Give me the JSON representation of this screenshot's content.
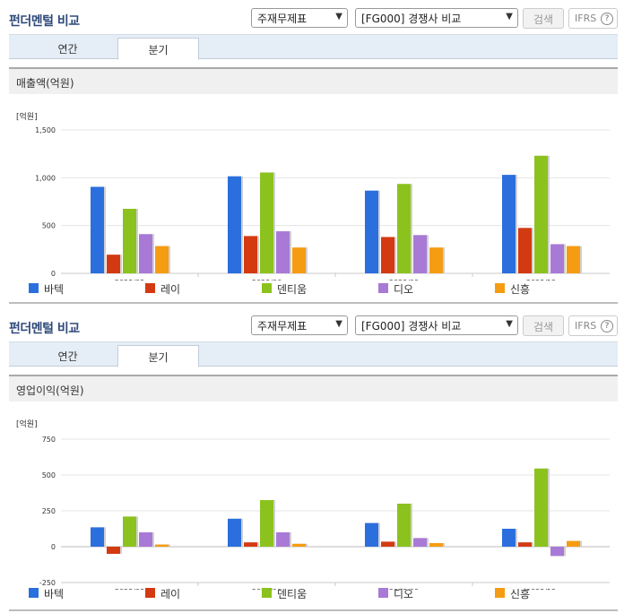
{
  "panels": [
    {
      "title": "펀더멘털 비교",
      "select_metric": "주재무제표",
      "select_peer": "[FG000] 경쟁사 비교",
      "search_label": "검색",
      "ifrs_label": "IFRS",
      "help_glyph": "?",
      "tabs": [
        {
          "label": "연간"
        },
        {
          "label": "분기"
        }
      ],
      "active_tab": "분기",
      "metric_title": "매출액(억원)",
      "unit_label": "[억원]"
    },
    {
      "title": "펀더멘털 비교",
      "select_metric": "주재무제표",
      "select_peer": "[FG000] 경쟁사 비교",
      "search_label": "검색",
      "ifrs_label": "IFRS",
      "help_glyph": "?",
      "tabs": [
        {
          "label": "연간"
        },
        {
          "label": "분기"
        }
      ],
      "active_tab": "분기",
      "metric_title": "영업이익(억원)",
      "unit_label": "[억원]"
    }
  ],
  "icons": {
    "dropdown": "chevron-down-icon",
    "help": "question-circle-icon"
  },
  "chart_data": [
    {
      "type": "bar",
      "title": "매출액(억원)",
      "categories": [
        "2023/03",
        "2023/06",
        "2023/09",
        "2023/12"
      ],
      "ylim": [
        0,
        1500
      ],
      "yticks": [
        0,
        500,
        1000,
        1500
      ],
      "ytick_labels": [
        "0",
        "500",
        "1,000",
        "1,500"
      ],
      "grid": true,
      "legend_position": "bottom",
      "series": [
        {
          "name": "바텍",
          "color": "#2b6fde",
          "values": [
            905,
            1015,
            865,
            1030
          ]
        },
        {
          "name": "레이",
          "color": "#d43a12",
          "values": [
            195,
            390,
            380,
            475
          ]
        },
        {
          "name": "덴티움",
          "color": "#8cc21e",
          "values": [
            675,
            1055,
            935,
            1230
          ]
        },
        {
          "name": "디오",
          "color": "#a87ad6",
          "values": [
            410,
            440,
            400,
            305
          ]
        },
        {
          "name": "신흥",
          "color": "#f59c12",
          "values": [
            285,
            270,
            270,
            285
          ]
        }
      ]
    },
    {
      "type": "bar",
      "title": "영업이익(억원)",
      "categories": [
        "2023/03",
        "2023/06",
        "2023/09",
        "2023/12"
      ],
      "ylim": [
        -250,
        750
      ],
      "yticks": [
        -250,
        0,
        250,
        500,
        750
      ],
      "ytick_labels": [
        "-250",
        "0",
        "250",
        "500",
        "750"
      ],
      "grid": true,
      "legend_position": "bottom",
      "series": [
        {
          "name": "바텍",
          "color": "#2b6fde",
          "values": [
            135,
            195,
            165,
            125
          ]
        },
        {
          "name": "레이",
          "color": "#d43a12",
          "values": [
            -50,
            30,
            35,
            30
          ]
        },
        {
          "name": "덴티움",
          "color": "#8cc21e",
          "values": [
            210,
            325,
            300,
            545
          ]
        },
        {
          "name": "디오",
          "color": "#a87ad6",
          "values": [
            100,
            100,
            60,
            -65
          ]
        },
        {
          "name": "신흥",
          "color": "#f59c12",
          "values": [
            15,
            20,
            25,
            40
          ]
        }
      ]
    }
  ]
}
